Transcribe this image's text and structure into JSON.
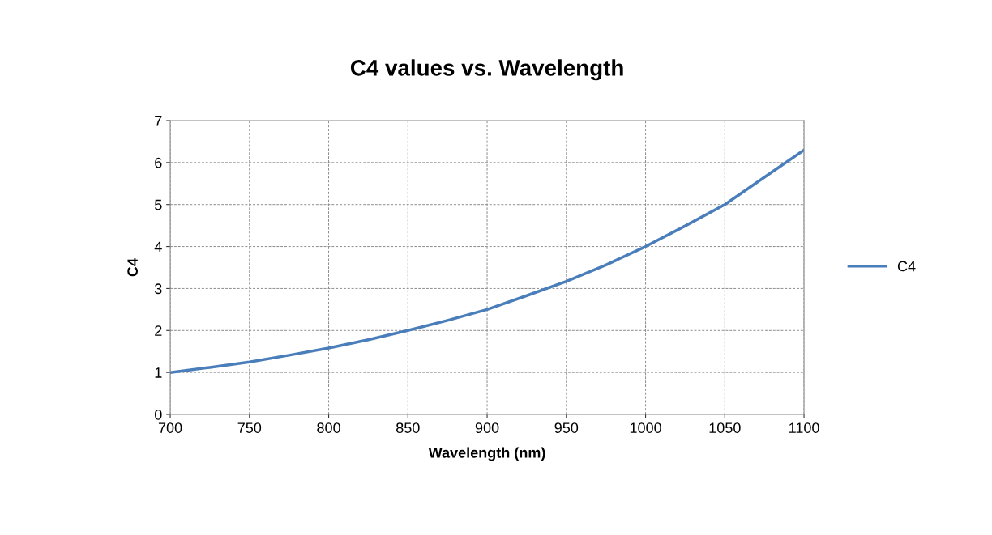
{
  "chart_data": {
    "type": "line",
    "title": "C4 values vs. Wavelength",
    "xlabel": "Wavelength (nm)",
    "ylabel": "C4",
    "x": [
      700,
      725,
      750,
      775,
      800,
      825,
      850,
      875,
      900,
      925,
      950,
      975,
      1000,
      1025,
      1050,
      1075,
      1100
    ],
    "series": [
      {
        "name": "C4",
        "color": "#4a7ebb",
        "values": [
          1.0,
          1.12,
          1.25,
          1.41,
          1.58,
          1.78,
          2.0,
          2.24,
          2.5,
          2.83,
          3.17,
          3.56,
          4.0,
          4.49,
          5.0,
          5.65,
          6.3
        ]
      }
    ],
    "xlim": [
      700,
      1100
    ],
    "xticks": [
      700,
      750,
      800,
      850,
      900,
      950,
      1000,
      1050,
      1100
    ],
    "ylim": [
      0,
      7
    ],
    "yticks": [
      0,
      1,
      2,
      3,
      4,
      5,
      6,
      7
    ],
    "grid": true,
    "legend": "right",
    "marker": "none",
    "line_style": "solid"
  }
}
